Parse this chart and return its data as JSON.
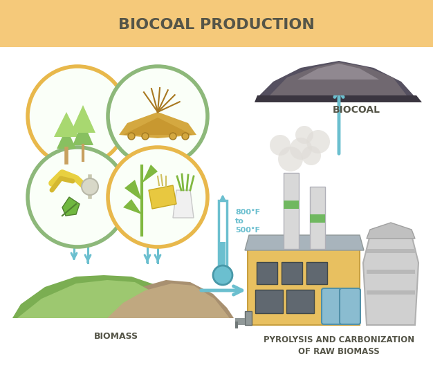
{
  "title": "BIOCOAL PRODUCTION",
  "title_bg": "#F5C97A",
  "bg_color": "#FFFFFF",
  "arrow_color": "#6BBFCF",
  "text_color": "#555548",
  "labels": {
    "biomass": "BIOMASS",
    "pyrolysis": "PYROLYSIS AND CARBONIZATION\nOF RAW BIOMASS",
    "biocoal": "BIOCOAL",
    "temp": "800°F\nto\n500°F"
  },
  "circle_yellow": "#E8B84B",
  "circle_green": "#8DB87A",
  "circle_fill": "#FAFFF8",
  "tree_green1": "#88C060",
  "tree_green2": "#A8D870",
  "tree_trunk": "#C8A060",
  "hay_gold": "#D4A840",
  "hay_brown": "#A87820",
  "vegwaste_yellow": "#E8D040",
  "vegwaste_green": "#70B840",
  "corn_green": "#80B840",
  "corn_yellow": "#E8C840",
  "radish_white": "#F0F0F0",
  "biomass_green1": "#7BAE52",
  "biomass_green2": "#9DC870",
  "biomass_brown1": "#A89070",
  "biomass_brown2": "#C0A880",
  "factory_yellow": "#E8C060",
  "factory_roof": "#A8B4BC",
  "factory_window": "#606870",
  "factory_gray1": "#D0D0D0",
  "factory_gray2": "#C0C0C0",
  "chimney_color": "#D8D8D8",
  "chimney_stripe": "#70B860",
  "smoke_color": "#E0DDD8",
  "coal_dark": "#555060",
  "coal_mid": "#706870",
  "coal_light": "#908890",
  "thermo_color": "#6BBFCF",
  "pipe_color": "#909898"
}
